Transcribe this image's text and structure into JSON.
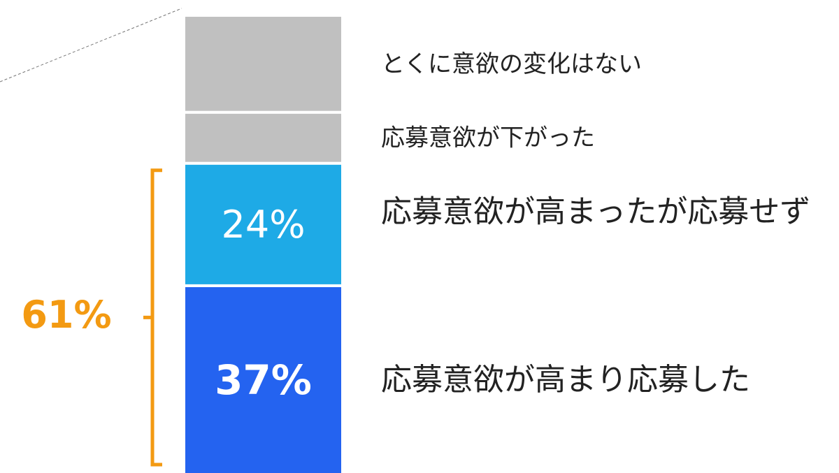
{
  "chart_data": {
    "type": "stacked_bar",
    "series": [
      {
        "name": "応募意欲が高まり応募した",
        "color": "#2463f0",
        "values": [
          37
        ],
        "value_labels": [
          "37%"
        ]
      },
      {
        "name": "応募意欲が高まったが応募せず",
        "color": "#1eaae6",
        "values": [
          24
        ],
        "value_labels": [
          "24%"
        ]
      },
      {
        "name": "応募意欲が下がった",
        "color": "#c0c0c0",
        "values": [
          10
        ]
      },
      {
        "name": "とくに意欲の変化はない",
        "color": "#c0c0c0",
        "values": [
          19
        ]
      }
    ],
    "annotation": "61%",
    "annotation_color": "#f39a12"
  }
}
